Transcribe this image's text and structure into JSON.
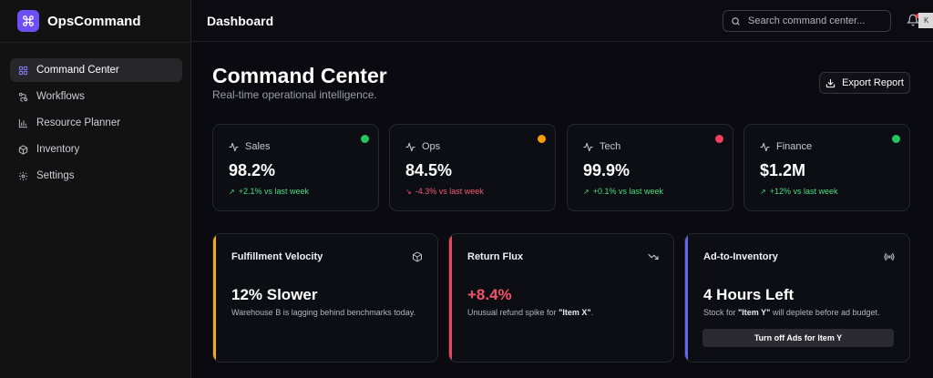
{
  "app": {
    "name": "OpsCommand"
  },
  "sidebar": {
    "items": [
      {
        "label": "Command Center",
        "icon": "grid-icon",
        "active": true
      },
      {
        "label": "Workflows",
        "icon": "workflow-icon",
        "active": false
      },
      {
        "label": "Resource Planner",
        "icon": "bar-chart-icon",
        "active": false
      },
      {
        "label": "Inventory",
        "icon": "box-icon",
        "active": false
      },
      {
        "label": "Settings",
        "icon": "gear-icon",
        "active": false
      }
    ]
  },
  "header": {
    "title": "Dashboard",
    "search_placeholder": "Search command center...",
    "avatar_text": "K"
  },
  "page": {
    "title": "Command Center",
    "subtitle": "Real-time operational intelligence.",
    "export_label": "Export Report"
  },
  "metrics": [
    {
      "label": "Sales",
      "value": "98.2%",
      "change": "+2.1% vs last week",
      "direction": "up",
      "status_color": "#22c55e",
      "change_color": "#4ade80"
    },
    {
      "label": "Ops",
      "value": "84.5%",
      "change": "-4.3% vs last week",
      "direction": "down",
      "status_color": "#f59e0b",
      "change_color": "#f25d73"
    },
    {
      "label": "Tech",
      "value": "99.9%",
      "change": "+0.1% vs last week",
      "direction": "up",
      "status_color": "#f43f5e",
      "change_color": "#4ade80"
    },
    {
      "label": "Finance",
      "value": "$1.2M",
      "change": "+12% vs last week",
      "direction": "up",
      "status_color": "#22c55e",
      "change_color": "#4ade80"
    }
  ],
  "insights": [
    {
      "title": "Fulfillment Velocity",
      "value": "12% Slower",
      "desc_pre": "Warehouse B is lagging behind benchmarks today.",
      "desc_bold": "",
      "desc_post": "",
      "accent": "#f5a623",
      "value_color": "#ffffff",
      "icon": "box-icon"
    },
    {
      "title": "Return Flux",
      "value": "+8.4%",
      "desc_pre": "Unusual refund spike for ",
      "desc_bold": "\"Item X\"",
      "desc_post": ".",
      "accent": "#e5485d",
      "value_color": "#f2536a",
      "icon": "trending-down-icon"
    },
    {
      "title": "Ad-to-Inventory",
      "value": "4 Hours Left",
      "desc_pre": "Stock for ",
      "desc_bold": "\"Item Y\"",
      "desc_post": " will deplete before ad budget.",
      "accent": "#6366f1",
      "value_color": "#ffffff",
      "icon": "broadcast-icon",
      "action_label": "Turn off Ads for Item Y"
    }
  ]
}
